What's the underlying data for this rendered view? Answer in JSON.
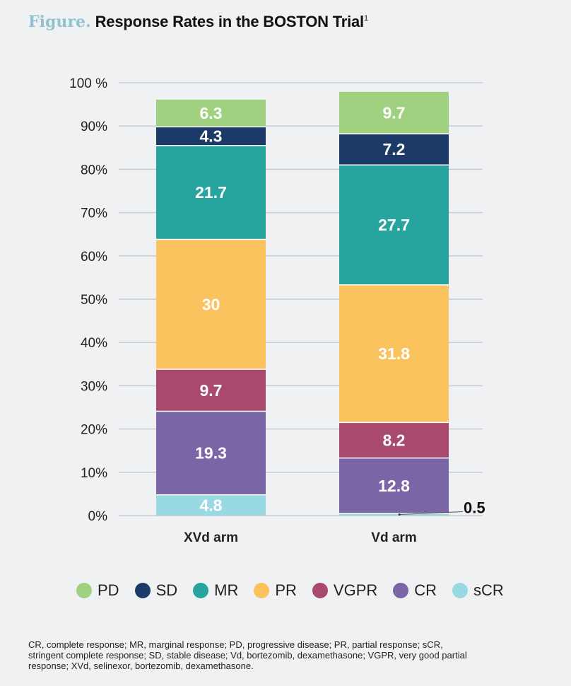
{
  "title": {
    "figure_label": "Figure.",
    "text": "Response Rates in the BOSTON Trial",
    "superscript": "1"
  },
  "chart_data": {
    "type": "bar",
    "stacked": true,
    "categories": [
      "XVd arm",
      "Vd arm"
    ],
    "yticks": [
      "0%",
      "10%",
      "20%",
      "30%",
      "40%",
      "50%",
      "60%",
      "70%",
      "80%",
      "90%",
      "100 %"
    ],
    "ylim": [
      0,
      100
    ],
    "legend_position": "bottom",
    "series": [
      {
        "name": "sCR",
        "color": "#99d9e1",
        "values": [
          4.8,
          0.5
        ],
        "labels": [
          "4.8",
          "0.5"
        ]
      },
      {
        "name": "CR",
        "color": "#7a66a6",
        "values": [
          19.3,
          12.8
        ],
        "labels": [
          "19.3",
          "12.8"
        ]
      },
      {
        "name": "VGPR",
        "color": "#a9496e",
        "values": [
          9.7,
          8.2
        ],
        "labels": [
          "9.7",
          "8.2"
        ]
      },
      {
        "name": "PR",
        "color": "#fbc35d",
        "values": [
          30,
          31.8
        ],
        "labels": [
          "30",
          "31.8"
        ]
      },
      {
        "name": "MR",
        "color": "#28a49f",
        "values": [
          21.7,
          27.7
        ],
        "labels": [
          "21.7",
          "27.7"
        ]
      },
      {
        "name": "SD",
        "color": "#1b3a68",
        "values": [
          4.3,
          7.2
        ],
        "labels": [
          "4.3",
          "7.2"
        ]
      },
      {
        "name": "PD",
        "color": "#9fd180",
        "values": [
          6.3,
          9.7
        ],
        "labels": [
          "6.3",
          "9.7"
        ]
      }
    ]
  },
  "legend": {
    "items": [
      {
        "label": "PD",
        "color": "#9fd180"
      },
      {
        "label": "SD",
        "color": "#1b3a68"
      },
      {
        "label": "MR",
        "color": "#28a49f"
      },
      {
        "label": "PR",
        "color": "#fbc35d"
      },
      {
        "label": "VGPR",
        "color": "#a9496e"
      },
      {
        "label": "CR",
        "color": "#7a66a6"
      },
      {
        "label": "sCR",
        "color": "#99d9e1"
      }
    ]
  },
  "footnote": "CR, complete response; MR, marginal response; PD, progressive disease; PR, partial response; sCR, stringent complete response; SD, stable disease; Vd, bortezomib, dexamethasone; VGPR, very good partial response; XVd, selinexor, bortezomib, dexamethasone."
}
